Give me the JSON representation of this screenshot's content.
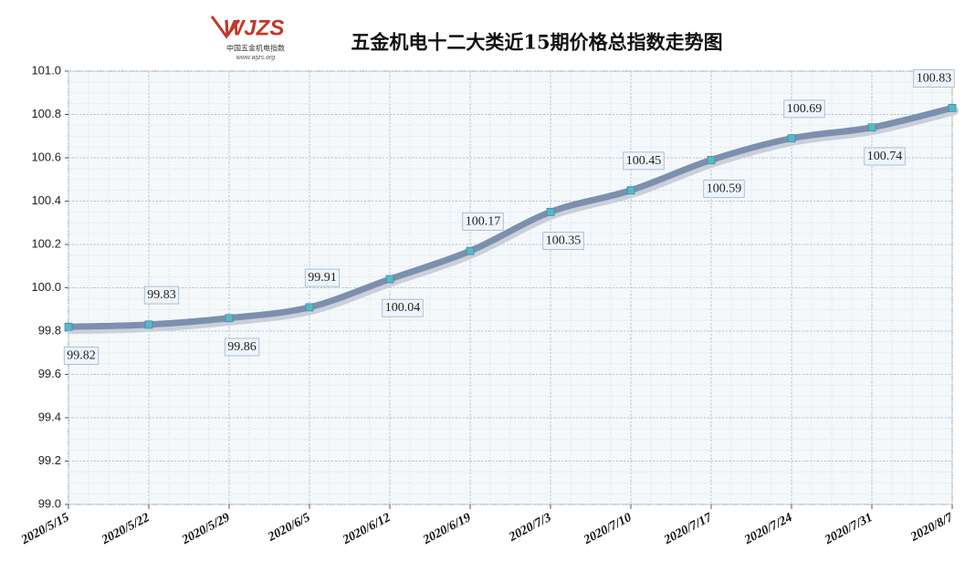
{
  "chart_data": {
    "type": "line",
    "title": "五金机电十二大类近15期价格总指数走势图",
    "logo_mark": "WJZS",
    "logo_name": "中国五金机电指数",
    "logo_url": "www.wjzs.org",
    "categories": [
      "2020/5/15",
      "2020/5/22",
      "2020/5/29",
      "2020/6/5",
      "2020/6/12",
      "2020/6/19",
      "2020/7/3",
      "2020/7/10",
      "2020/7/17",
      "2020/7/24",
      "2020/7/31",
      "2020/8/7"
    ],
    "values": [
      99.82,
      99.83,
      99.86,
      99.91,
      100.04,
      100.17,
      100.35,
      100.45,
      100.59,
      100.69,
      100.74,
      100.83
    ],
    "color": "#7d8fae",
    "marker_color": "#5bb6c9",
    "ylim": [
      99,
      101
    ],
    "yticks": [
      {
        "value": 99,
        "label": "99.0"
      },
      99.2,
      99.4,
      99.6,
      99.8,
      {
        "value": 100,
        "label": "100.0"
      },
      100.2,
      100.4,
      100.6,
      100.8,
      {
        "value": 101,
        "label": "101.0"
      }
    ],
    "grid": true
  }
}
